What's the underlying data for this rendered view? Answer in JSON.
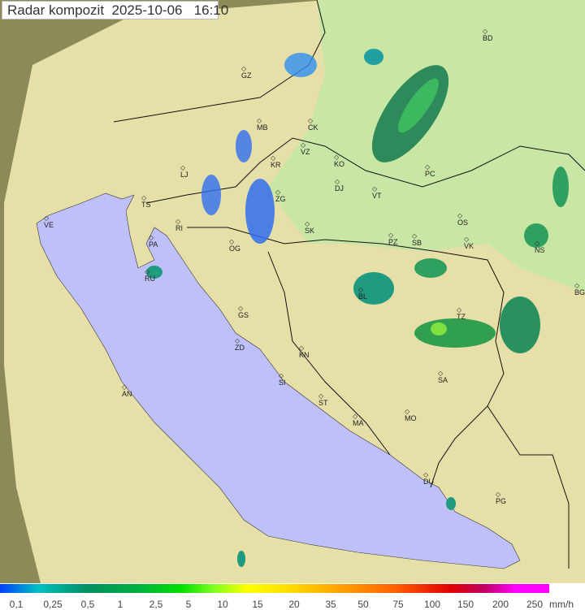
{
  "title": {
    "product": "Radar kompozit",
    "date": "2025-10-06",
    "time": "16:10"
  },
  "cities": [
    "BD",
    "GZ",
    "MB",
    "CK",
    "VZ",
    "KR",
    "KO",
    "PC",
    "LJ",
    "DJ",
    "VT",
    "TS",
    "ZG",
    "VE",
    "RI",
    "SK",
    "OS",
    "PA",
    "PZ",
    "SB",
    "VK",
    "NS",
    "OG",
    "RU",
    "BL",
    "BG",
    "GS",
    "TZ",
    "ZD",
    "KN",
    "SA",
    "SI",
    "AN",
    "ST",
    "MA",
    "MO",
    "DU",
    "PG"
  ],
  "legend": {
    "labels": [
      "0,1",
      "0,25",
      "0,5",
      "1",
      "2,5",
      "5",
      "10",
      "15",
      "20",
      "35",
      "50",
      "75",
      "100",
      "150",
      "200",
      "250"
    ],
    "unit": "mm/h"
  },
  "colors": {
    "sea": "#c0c0f8",
    "land": "#e6dfa8",
    "outside": "#8c8a58",
    "lowland": "#c8e6a4"
  }
}
